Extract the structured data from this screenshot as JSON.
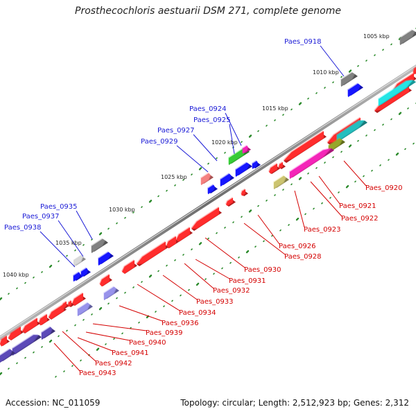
{
  "title": "Prosthecochloris aestuarii DSM 271, complete genome",
  "footer": {
    "accession": "Accession: NC_011059",
    "topology": "Topology: circular; Length: 2,512,923 bp; Genes: 2,312"
  },
  "colors": {
    "forward_label": "#1a1ad6",
    "reverse_label": "#d40000",
    "backbone": "#8a8a8a",
    "tick": "#2a8a2a",
    "cds_red": "#ff2a2a",
    "cds_blue": "#1515ff",
    "cds_gray": "#777777",
    "cds_cyan": "#22d8d8",
    "cds_magenta": "#ee22aa",
    "cds_green": "#33bb33",
    "cds_olive": "#8a9a28",
    "cds_khaki": "#bcb468",
    "cds_pink": "#ee7777",
    "cds_indigo": "#5544aa",
    "cds_lavender": "#8c88e0",
    "cds_lightgray": "#c8c8c8",
    "cds_teal": "#22b0b0"
  },
  "kbp_labels": [
    "1005 kbp",
    "1010 kbp",
    "1015 kbp",
    "1020 kbp",
    "1025 kbp",
    "1030 kbp",
    "1035 kbp",
    "1040 kbp"
  ],
  "forward_genes": [
    "Paes_0918",
    "Paes_0924",
    "Paes_0925",
    "Paes_0927",
    "Paes_0929",
    "Paes_0935",
    "Paes_0937",
    "Paes_0938"
  ],
  "reverse_genes": [
    "Paes_0920",
    "Paes_0921",
    "Paes_0922",
    "Paes_0923",
    "Paes_0926",
    "Paes_0928",
    "Paes_0930",
    "Paes_0931",
    "Paes_0932",
    "Paes_0933",
    "Paes_0934",
    "Paes_0936",
    "Paes_0939",
    "Paes_0940",
    "Paes_0941",
    "Paes_0942",
    "Paes_0943"
  ]
}
